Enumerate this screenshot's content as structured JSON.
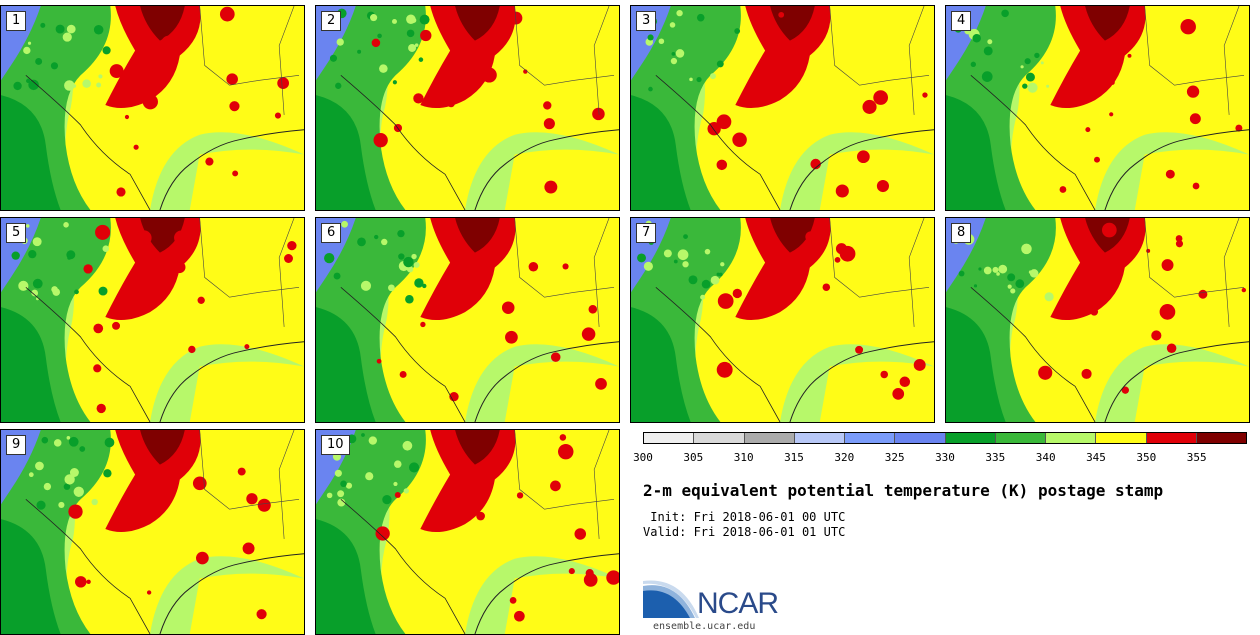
{
  "members": [
    "1",
    "2",
    "3",
    "4",
    "5",
    "6",
    "7",
    "8",
    "9",
    "10"
  ],
  "colorbar": {
    "ticks": [
      "300",
      "305",
      "310",
      "315",
      "320",
      "325",
      "330",
      "335",
      "340",
      "345",
      "350",
      "355"
    ],
    "colors": [
      "#efefef",
      "#d9d9d9",
      "#ababab",
      "#b8c8f7",
      "#7b9cfa",
      "#6a84f0",
      "#089f2a",
      "#3ab83a",
      "#b7f86a",
      "#fffc17",
      "#e00008",
      "#7f0000"
    ]
  },
  "title": "2-m equivalent potential temperature (K) postage stamp",
  "init": " Init: Fri 2018-06-01 00 UTC",
  "valid": "Valid: Fri 2018-06-01 01 UTC",
  "logo": {
    "text": "NCAR",
    "url": "ensemble.ucar.edu"
  }
}
